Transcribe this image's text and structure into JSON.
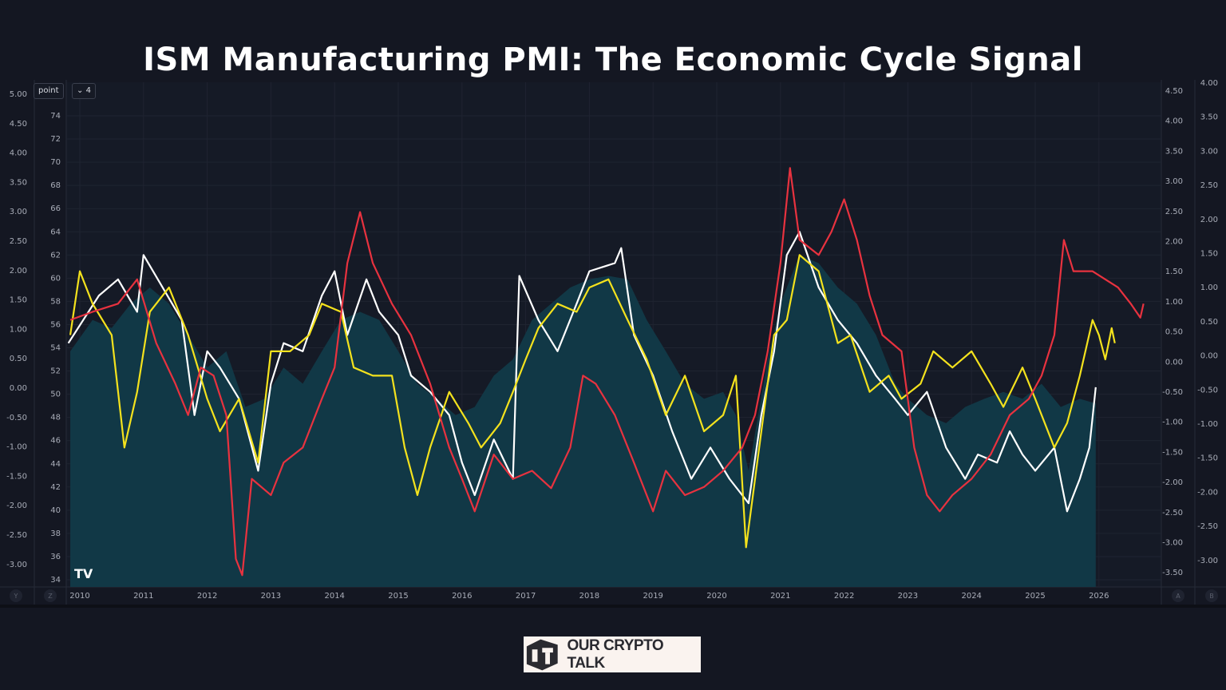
{
  "title": "ISM Manufacturing PMI: The Economic Cycle Signal",
  "controls": {
    "unit_label": "point",
    "dropdown_label": "4",
    "axis_button_left_1": "Y",
    "axis_button_left_2": "Z",
    "axis_button_right_1": "A",
    "axis_button_right_2": "B"
  },
  "watermark": "TV",
  "logo_text": "OUR CRYPTO TALK",
  "colors": {
    "background": "#141722",
    "area": "#113846",
    "white": "#ffffff",
    "yellow": "#f4e21d",
    "red": "#e8323f"
  },
  "chart_data": {
    "type": "line",
    "title": "ISM Manufacturing PMI: The Economic Cycle Signal",
    "xlabel": "",
    "ylabel": "",
    "xlim": [
      2009.8,
      2027.0
    ],
    "ylim": [
      33.5,
      76.5
    ],
    "grid": true,
    "x_ticks": [
      "2010",
      "2011",
      "2012",
      "2013",
      "2014",
      "2015",
      "2016",
      "2017",
      "2018",
      "2019",
      "2020",
      "2021",
      "2022",
      "2023",
      "2024",
      "2025",
      "2026"
    ],
    "y_ticks_main": [
      "74",
      "72",
      "70",
      "68",
      "66",
      "64",
      "62",
      "60",
      "58",
      "56",
      "54",
      "52",
      "50",
      "48",
      "46",
      "44",
      "42",
      "40",
      "38",
      "36",
      "34"
    ],
    "y_ticks_left_outer": [
      "5.00",
      "4.50",
      "4.00",
      "3.50",
      "3.00",
      "2.50",
      "2.00",
      "1.50",
      "1.00",
      "0.50",
      "0.00",
      "-0.50",
      "-1.00",
      "-1.50",
      "-2.00",
      "-2.50",
      "-3.00"
    ],
    "y_ticks_right_inner": [
      "4.50",
      "4.00",
      "3.50",
      "3.00",
      "2.50",
      "2.00",
      "1.50",
      "1.00",
      "0.50",
      "0.00",
      "-0.50",
      "-1.00",
      "-1.50",
      "-2.00",
      "-2.50",
      "-3.00",
      "-3.50"
    ],
    "y_ticks_right_outer": [
      "4.00",
      "3.50",
      "3.00",
      "2.50",
      "2.00",
      "1.50",
      "1.00",
      "0.50",
      "0.00",
      "-0.50",
      "-1.00",
      "-1.50",
      "-2.00",
      "-2.50",
      "-3.00"
    ],
    "series": [
      {
        "kind": "area",
        "color": "#113846",
        "points": [
          [
            2009.85,
            53.7
          ],
          [
            2010.2,
            56.4
          ],
          [
            2010.5,
            55.7
          ],
          [
            2010.8,
            57.8
          ],
          [
            2011.1,
            59.2
          ],
          [
            2011.4,
            57.8
          ],
          [
            2011.7,
            55.1
          ],
          [
            2012.0,
            52.3
          ],
          [
            2012.3,
            53.7
          ],
          [
            2012.6,
            48.9
          ],
          [
            2012.9,
            49.6
          ],
          [
            2013.2,
            52.3
          ],
          [
            2013.5,
            50.9
          ],
          [
            2013.8,
            53.7
          ],
          [
            2014.1,
            56.4
          ],
          [
            2014.4,
            57.1
          ],
          [
            2014.7,
            56.4
          ],
          [
            2015.0,
            53.7
          ],
          [
            2015.3,
            50.9
          ],
          [
            2015.6,
            49.6
          ],
          [
            2015.9,
            48.2
          ],
          [
            2016.2,
            48.9
          ],
          [
            2016.5,
            51.6
          ],
          [
            2016.8,
            53.0
          ],
          [
            2017.1,
            56.4
          ],
          [
            2017.4,
            57.8
          ],
          [
            2017.7,
            59.2
          ],
          [
            2018.0,
            59.9
          ],
          [
            2018.3,
            60.2
          ],
          [
            2018.6,
            59.9
          ],
          [
            2018.9,
            56.4
          ],
          [
            2019.2,
            53.7
          ],
          [
            2019.5,
            50.9
          ],
          [
            2019.8,
            49.6
          ],
          [
            2020.1,
            50.2
          ],
          [
            2020.3,
            48.2
          ],
          [
            2020.5,
            43.4
          ],
          [
            2020.8,
            53.0
          ],
          [
            2021.0,
            57.8
          ],
          [
            2021.3,
            62.0
          ],
          [
            2021.6,
            61.3
          ],
          [
            2021.9,
            59.2
          ],
          [
            2022.2,
            57.8
          ],
          [
            2022.5,
            55.1
          ],
          [
            2022.8,
            50.9
          ],
          [
            2023.0,
            49.6
          ],
          [
            2023.3,
            48.2
          ],
          [
            2023.6,
            47.5
          ],
          [
            2023.9,
            48.9
          ],
          [
            2024.2,
            49.6
          ],
          [
            2024.5,
            50.2
          ],
          [
            2024.8,
            49.6
          ],
          [
            2025.1,
            50.9
          ],
          [
            2025.4,
            48.9
          ],
          [
            2025.7,
            49.6
          ],
          [
            2025.95,
            49.2
          ]
        ]
      },
      {
        "kind": "line",
        "color": "#ffffff",
        "points": [
          [
            2009.82,
            54.4
          ],
          [
            2010.3,
            58.5
          ],
          [
            2010.6,
            59.9
          ],
          [
            2010.9,
            57.1
          ],
          [
            2011.0,
            62.0
          ],
          [
            2011.3,
            59.2
          ],
          [
            2011.6,
            56.4
          ],
          [
            2011.8,
            48.2
          ],
          [
            2012.0,
            53.7
          ],
          [
            2012.2,
            52.3
          ],
          [
            2012.5,
            49.6
          ],
          [
            2012.8,
            43.4
          ],
          [
            2013.0,
            50.9
          ],
          [
            2013.2,
            54.4
          ],
          [
            2013.5,
            53.7
          ],
          [
            2013.8,
            58.5
          ],
          [
            2014.0,
            60.6
          ],
          [
            2014.2,
            55.1
          ],
          [
            2014.5,
            59.9
          ],
          [
            2014.7,
            57.1
          ],
          [
            2015.0,
            55.1
          ],
          [
            2015.2,
            51.6
          ],
          [
            2015.5,
            50.2
          ],
          [
            2015.8,
            48.2
          ],
          [
            2016.0,
            44.1
          ],
          [
            2016.2,
            41.3
          ],
          [
            2016.5,
            46.1
          ],
          [
            2016.8,
            42.7
          ],
          [
            2016.9,
            60.2
          ],
          [
            2017.2,
            56.4
          ],
          [
            2017.5,
            53.7
          ],
          [
            2017.8,
            57.8
          ],
          [
            2018.0,
            60.6
          ],
          [
            2018.4,
            61.3
          ],
          [
            2018.5,
            62.6
          ],
          [
            2018.7,
            55.1
          ],
          [
            2019.0,
            51.6
          ],
          [
            2019.3,
            46.8
          ],
          [
            2019.6,
            42.7
          ],
          [
            2019.9,
            45.4
          ],
          [
            2020.2,
            42.7
          ],
          [
            2020.5,
            40.6
          ],
          [
            2020.7,
            48.2
          ],
          [
            2020.9,
            53.7
          ],
          [
            2021.1,
            62.0
          ],
          [
            2021.3,
            64.0
          ],
          [
            2021.6,
            59.2
          ],
          [
            2021.9,
            56.4
          ],
          [
            2022.2,
            54.4
          ],
          [
            2022.5,
            51.6
          ],
          [
            2022.8,
            49.6
          ],
          [
            2023.0,
            48.2
          ],
          [
            2023.3,
            50.2
          ],
          [
            2023.6,
            45.4
          ],
          [
            2023.9,
            42.7
          ],
          [
            2024.1,
            44.8
          ],
          [
            2024.4,
            44.1
          ],
          [
            2024.6,
            46.8
          ],
          [
            2024.8,
            44.8
          ],
          [
            2025.0,
            43.4
          ],
          [
            2025.3,
            45.4
          ],
          [
            2025.5,
            39.9
          ],
          [
            2025.7,
            42.7
          ],
          [
            2025.85,
            45.4
          ],
          [
            2025.95,
            50.6
          ]
        ]
      },
      {
        "kind": "line",
        "color": "#f4e21d",
        "points": [
          [
            2009.85,
            55.1
          ],
          [
            2010.0,
            60.6
          ],
          [
            2010.2,
            57.8
          ],
          [
            2010.5,
            55.1
          ],
          [
            2010.7,
            45.4
          ],
          [
            2010.9,
            50.2
          ],
          [
            2011.1,
            57.1
          ],
          [
            2011.4,
            59.2
          ],
          [
            2011.7,
            55.1
          ],
          [
            2012.0,
            49.6
          ],
          [
            2012.2,
            46.8
          ],
          [
            2012.5,
            49.6
          ],
          [
            2012.8,
            44.1
          ],
          [
            2013.0,
            53.7
          ],
          [
            2013.3,
            53.7
          ],
          [
            2013.6,
            55.1
          ],
          [
            2013.8,
            57.8
          ],
          [
            2014.1,
            57.1
          ],
          [
            2014.3,
            52.3
          ],
          [
            2014.6,
            51.6
          ],
          [
            2014.9,
            51.6
          ],
          [
            2015.1,
            45.4
          ],
          [
            2015.3,
            41.3
          ],
          [
            2015.5,
            45.4
          ],
          [
            2015.8,
            50.2
          ],
          [
            2016.1,
            47.5
          ],
          [
            2016.3,
            45.4
          ],
          [
            2016.6,
            47.5
          ],
          [
            2016.8,
            50.2
          ],
          [
            2017.0,
            53.0
          ],
          [
            2017.2,
            55.7
          ],
          [
            2017.5,
            57.8
          ],
          [
            2017.8,
            57.1
          ],
          [
            2018.0,
            59.2
          ],
          [
            2018.3,
            59.9
          ],
          [
            2018.6,
            56.4
          ],
          [
            2018.9,
            53.0
          ],
          [
            2019.2,
            48.2
          ],
          [
            2019.5,
            51.6
          ],
          [
            2019.8,
            46.8
          ],
          [
            2020.1,
            48.2
          ],
          [
            2020.3,
            51.6
          ],
          [
            2020.46,
            36.8
          ],
          [
            2020.7,
            46.8
          ],
          [
            2020.9,
            55.1
          ],
          [
            2021.1,
            56.4
          ],
          [
            2021.3,
            62.0
          ],
          [
            2021.6,
            60.6
          ],
          [
            2021.9,
            54.4
          ],
          [
            2022.1,
            55.1
          ],
          [
            2022.4,
            50.2
          ],
          [
            2022.7,
            51.6
          ],
          [
            2022.9,
            49.6
          ],
          [
            2023.2,
            50.9
          ],
          [
            2023.4,
            53.7
          ],
          [
            2023.7,
            52.3
          ],
          [
            2024.0,
            53.7
          ],
          [
            2024.3,
            50.9
          ],
          [
            2024.5,
            48.9
          ],
          [
            2024.8,
            52.3
          ],
          [
            2025.0,
            49.6
          ],
          [
            2025.3,
            45.4
          ],
          [
            2025.5,
            47.5
          ],
          [
            2025.7,
            51.6
          ],
          [
            2025.9,
            56.4
          ],
          [
            2026.0,
            55.1
          ],
          [
            2026.1,
            53.0
          ],
          [
            2026.2,
            55.7
          ],
          [
            2026.25,
            54.4
          ]
        ]
      },
      {
        "kind": "line",
        "color": "#e8323f",
        "points": [
          [
            2009.85,
            56.4
          ],
          [
            2010.2,
            57.1
          ],
          [
            2010.6,
            57.8
          ],
          [
            2010.9,
            59.9
          ],
          [
            2011.2,
            54.4
          ],
          [
            2011.5,
            50.9
          ],
          [
            2011.7,
            48.2
          ],
          [
            2011.9,
            52.3
          ],
          [
            2012.1,
            51.6
          ],
          [
            2012.3,
            48.2
          ],
          [
            2012.45,
            35.8
          ],
          [
            2012.55,
            34.4
          ],
          [
            2012.7,
            42.7
          ],
          [
            2013.0,
            41.3
          ],
          [
            2013.2,
            44.1
          ],
          [
            2013.5,
            45.4
          ],
          [
            2013.8,
            49.6
          ],
          [
            2014.0,
            52.3
          ],
          [
            2014.2,
            61.3
          ],
          [
            2014.4,
            65.7
          ],
          [
            2014.6,
            61.3
          ],
          [
            2014.9,
            57.8
          ],
          [
            2015.2,
            55.1
          ],
          [
            2015.5,
            50.9
          ],
          [
            2015.8,
            45.4
          ],
          [
            2016.0,
            42.7
          ],
          [
            2016.2,
            39.9
          ],
          [
            2016.5,
            44.8
          ],
          [
            2016.8,
            42.7
          ],
          [
            2017.1,
            43.4
          ],
          [
            2017.4,
            41.9
          ],
          [
            2017.7,
            45.4
          ],
          [
            2017.9,
            51.6
          ],
          [
            2018.1,
            50.9
          ],
          [
            2018.4,
            48.2
          ],
          [
            2018.7,
            44.1
          ],
          [
            2019.0,
            39.9
          ],
          [
            2019.2,
            43.4
          ],
          [
            2019.5,
            41.3
          ],
          [
            2019.8,
            42.0
          ],
          [
            2020.1,
            43.4
          ],
          [
            2020.4,
            45.4
          ],
          [
            2020.6,
            48.2
          ],
          [
            2020.8,
            53.7
          ],
          [
            2021.0,
            61.3
          ],
          [
            2021.15,
            69.5
          ],
          [
            2021.3,
            63.3
          ],
          [
            2021.6,
            62.0
          ],
          [
            2021.8,
            64.0
          ],
          [
            2022.0,
            66.8
          ],
          [
            2022.2,
            63.3
          ],
          [
            2022.4,
            58.5
          ],
          [
            2022.6,
            55.1
          ],
          [
            2022.9,
            53.7
          ],
          [
            2023.1,
            45.4
          ],
          [
            2023.3,
            41.3
          ],
          [
            2023.5,
            39.9
          ],
          [
            2023.7,
            41.3
          ],
          [
            2024.0,
            42.7
          ],
          [
            2024.3,
            44.8
          ],
          [
            2024.6,
            48.2
          ],
          [
            2024.9,
            49.6
          ],
          [
            2025.1,
            51.6
          ],
          [
            2025.3,
            55.1
          ],
          [
            2025.45,
            63.3
          ],
          [
            2025.6,
            60.6
          ],
          [
            2025.9,
            60.6
          ],
          [
            2026.1,
            59.9
          ],
          [
            2026.3,
            59.2
          ],
          [
            2026.5,
            57.8
          ],
          [
            2026.65,
            56.6
          ],
          [
            2026.7,
            57.8
          ]
        ]
      }
    ]
  }
}
